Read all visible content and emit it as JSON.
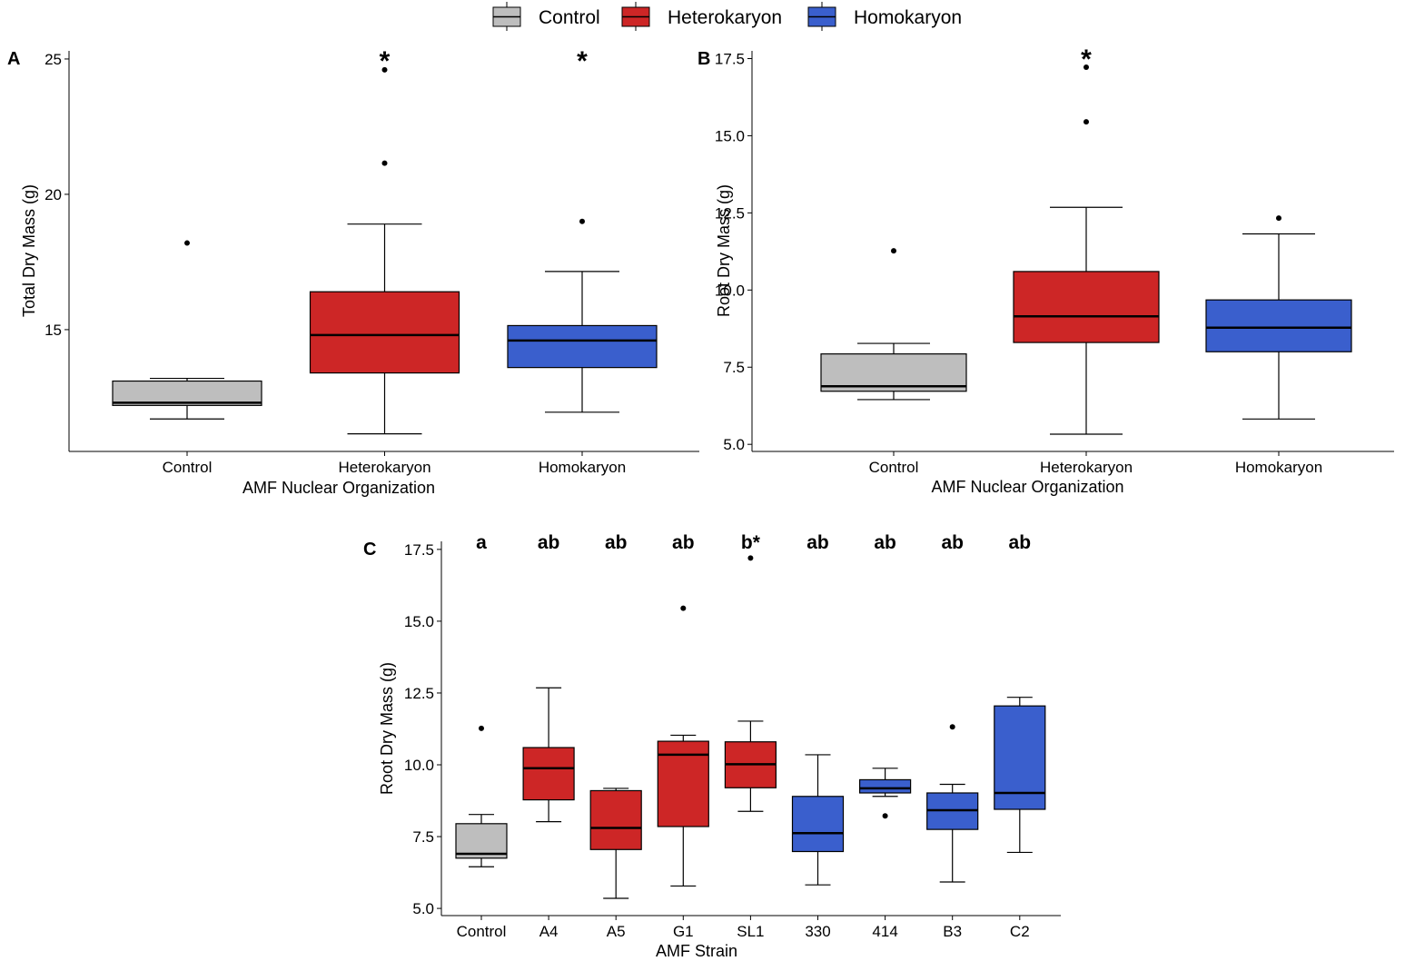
{
  "legend": {
    "entries": [
      {
        "label": "Control",
        "color": "#BEBEBE"
      },
      {
        "label": "Heterokaryon",
        "color": "#CD2626"
      },
      {
        "label": "Homokaryon",
        "color": "#3A5FCD"
      }
    ]
  },
  "chart_data": [
    {
      "panel": "A",
      "type": "box",
      "xlabel": "AMF Nuclear Organization",
      "ylabel": "Total Dry Mass (g)",
      "ylim": [
        10.5,
        25.3
      ],
      "yticks": [
        15,
        20,
        25
      ],
      "categories": [
        "Control",
        "Heterokaryon",
        "Homokaryon"
      ],
      "boxes": [
        {
          "category": "Control",
          "group": "Control",
          "min": 11.7,
          "q1": 12.2,
          "median": 12.3,
          "q3": 13.1,
          "max": 13.2,
          "outliers": [
            18.2
          ],
          "label": ""
        },
        {
          "category": "Heterokaryon",
          "group": "Heterokaryon",
          "min": 11.15,
          "q1": 13.4,
          "median": 14.8,
          "q3": 16.4,
          "max": 18.9,
          "outliers": [
            21.15,
            24.6
          ],
          "label": "*"
        },
        {
          "category": "Homokaryon",
          "group": "Homokaryon",
          "min": 11.95,
          "q1": 13.6,
          "median": 14.6,
          "q3": 15.15,
          "max": 17.15,
          "outliers": [
            19.0
          ],
          "label": "*"
        }
      ]
    },
    {
      "panel": "B",
      "type": "box",
      "xlabel": "AMF Nuclear Organization",
      "ylabel": "Root Dry Mass (g)",
      "ylim": [
        4.77,
        17.75
      ],
      "yticks": [
        "5.0",
        "7.5",
        "10.0",
        "12.5",
        "15.0",
        "17.5"
      ],
      "categories": [
        "Control",
        "Heterokaryon",
        "Homokaryon"
      ],
      "boxes": [
        {
          "category": "Control",
          "group": "Control",
          "min": 6.45,
          "q1": 6.72,
          "median": 6.88,
          "q3": 7.93,
          "max": 8.27,
          "outliers": [
            11.27
          ],
          "label": ""
        },
        {
          "category": "Heterokaryon",
          "group": "Heterokaryon",
          "min": 5.33,
          "q1": 8.3,
          "median": 9.15,
          "q3": 10.6,
          "max": 12.68,
          "outliers": [
            15.45,
            17.22
          ],
          "label": "*"
        },
        {
          "category": "Homokaryon",
          "group": "Homokaryon",
          "min": 5.82,
          "q1": 8.0,
          "median": 8.78,
          "q3": 9.68,
          "max": 11.82,
          "outliers": [
            12.33
          ],
          "label": ""
        }
      ]
    },
    {
      "panel": "C",
      "type": "box",
      "xlabel": "AMF Strain",
      "ylabel": "Root Dry Mass (g)",
      "ylim": [
        4.75,
        17.78
      ],
      "yticks": [
        "5.0",
        "7.5",
        "10.0",
        "12.5",
        "15.0",
        "17.5"
      ],
      "categories": [
        "Control",
        "A4",
        "A5",
        "G1",
        "SL1",
        "330",
        "414",
        "B3",
        "C2"
      ],
      "boxes": [
        {
          "category": "Control",
          "group": "Control",
          "min": 6.45,
          "q1": 6.75,
          "median": 6.9,
          "q3": 7.95,
          "max": 8.27,
          "outliers": [
            11.27
          ],
          "label": "a"
        },
        {
          "category": "A4",
          "group": "Heterokaryon",
          "min": 8.02,
          "q1": 8.78,
          "median": 9.88,
          "q3": 10.6,
          "max": 12.68,
          "outliers": [],
          "label": "ab"
        },
        {
          "category": "A5",
          "group": "Heterokaryon",
          "min": 5.35,
          "q1": 7.05,
          "median": 7.8,
          "q3": 9.1,
          "max": 9.18,
          "outliers": [],
          "label": "ab"
        },
        {
          "category": "G1",
          "group": "Heterokaryon",
          "min": 5.78,
          "q1": 7.85,
          "median": 10.35,
          "q3": 10.82,
          "max": 11.03,
          "outliers": [
            15.45
          ],
          "label": "ab"
        },
        {
          "category": "SL1",
          "group": "Heterokaryon",
          "min": 8.38,
          "q1": 9.2,
          "median": 10.02,
          "q3": 10.8,
          "max": 11.52,
          "outliers": [
            17.2
          ],
          "label": "b*"
        },
        {
          "category": "330",
          "group": "Homokaryon",
          "min": 5.82,
          "q1": 6.98,
          "median": 7.62,
          "q3": 8.9,
          "max": 10.35,
          "outliers": [],
          "label": "ab"
        },
        {
          "category": "414",
          "group": "Homokaryon",
          "min": 8.9,
          "q1": 9.02,
          "median": 9.18,
          "q3": 9.48,
          "max": 9.88,
          "outliers": [
            8.22
          ],
          "label": "ab"
        },
        {
          "category": "B3",
          "group": "Homokaryon",
          "min": 5.92,
          "q1": 7.75,
          "median": 8.42,
          "q3": 9.02,
          "max": 9.32,
          "outliers": [
            11.32
          ],
          "label": "ab"
        },
        {
          "category": "C2",
          "group": "Homokaryon",
          "min": 6.95,
          "q1": 8.45,
          "median": 9.02,
          "q3": 12.05,
          "max": 12.35,
          "outliers": [],
          "label": "ab"
        }
      ]
    }
  ]
}
